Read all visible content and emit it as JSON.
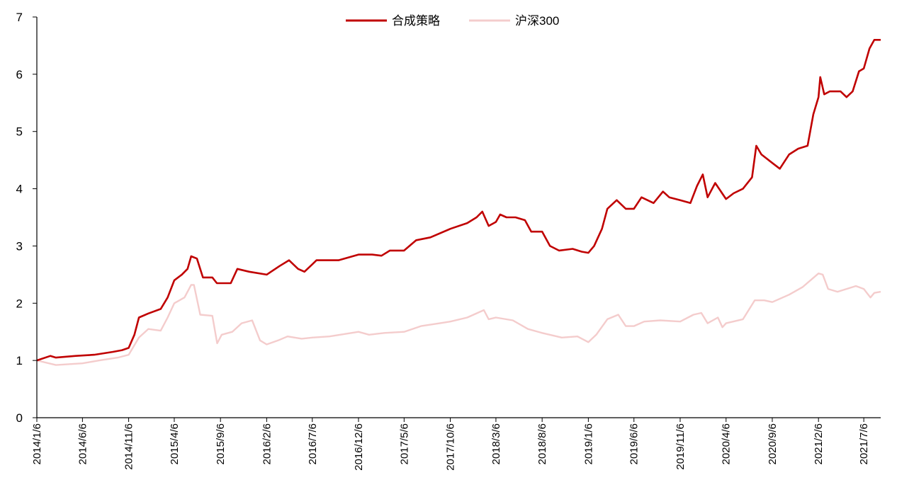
{
  "chart_data": {
    "type": "line",
    "title": "",
    "xlabel": "",
    "ylabel": "",
    "ylim": [
      0,
      7
    ],
    "yticks": [
      "0",
      "1",
      "2",
      "3",
      "4",
      "5",
      "6",
      "7"
    ],
    "xticks": [
      "2014/1/6",
      "2014/6/6",
      "2014/11/6",
      "2015/4/6",
      "2015/9/6",
      "2016/2/6",
      "2016/7/6",
      "2016/12/6",
      "2017/5/6",
      "2017/10/6",
      "2018/3/6",
      "2018/8/6",
      "2019/1/6",
      "2019/6/6",
      "2019/11/6",
      "2020/4/6",
      "2020/9/6",
      "2021/2/6",
      "2021/7/6"
    ],
    "x_range": [
      "2014/1/6",
      "2021/8/31"
    ],
    "grid": false,
    "legend_position": "top-center",
    "series": [
      {
        "name": "合成策略",
        "color": "#c00000",
        "points": [
          [
            "2014/1/6",
            1.0
          ],
          [
            "2014/2/20",
            1.08
          ],
          [
            "2014/3/10",
            1.05
          ],
          [
            "2014/5/15",
            1.08
          ],
          [
            "2014/7/15",
            1.1
          ],
          [
            "2014/9/15",
            1.15
          ],
          [
            "2014/10/15",
            1.18
          ],
          [
            "2014/11/6",
            1.22
          ],
          [
            "2014/11/25",
            1.45
          ],
          [
            "2014/12/10",
            1.75
          ],
          [
            "2015/1/10",
            1.82
          ],
          [
            "2015/2/20",
            1.9
          ],
          [
            "2015/3/15",
            2.1
          ],
          [
            "2015/4/6",
            2.4
          ],
          [
            "2015/5/1",
            2.5
          ],
          [
            "2015/5/20",
            2.6
          ],
          [
            "2015/6/1",
            2.82
          ],
          [
            "2015/6/20",
            2.78
          ],
          [
            "2015/7/10",
            2.45
          ],
          [
            "2015/8/10",
            2.45
          ],
          [
            "2015/8/25",
            2.35
          ],
          [
            "2015/10/10",
            2.35
          ],
          [
            "2015/11/1",
            2.6
          ],
          [
            "2015/12/10",
            2.55
          ],
          [
            "2016/2/6",
            2.5
          ],
          [
            "2016/3/20",
            2.65
          ],
          [
            "2016/4/20",
            2.75
          ],
          [
            "2016/5/20",
            2.6
          ],
          [
            "2016/6/10",
            2.55
          ],
          [
            "2016/7/6",
            2.68
          ],
          [
            "2016/7/20",
            2.75
          ],
          [
            "2016/10/1",
            2.75
          ],
          [
            "2016/12/6",
            2.85
          ],
          [
            "2017/1/20",
            2.85
          ],
          [
            "2017/2/20",
            2.83
          ],
          [
            "2017/3/20",
            2.92
          ],
          [
            "2017/5/6",
            2.92
          ],
          [
            "2017/6/15",
            3.1
          ],
          [
            "2017/8/1",
            3.15
          ],
          [
            "2017/10/6",
            3.3
          ],
          [
            "2017/12/1",
            3.4
          ],
          [
            "2018/1/1",
            3.5
          ],
          [
            "2018/1/20",
            3.6
          ],
          [
            "2018/2/10",
            3.35
          ],
          [
            "2018/3/6",
            3.42
          ],
          [
            "2018/3/20",
            3.55
          ],
          [
            "2018/4/10",
            3.5
          ],
          [
            "2018/5/10",
            3.5
          ],
          [
            "2018/6/10",
            3.45
          ],
          [
            "2018/7/1",
            3.25
          ],
          [
            "2018/8/6",
            3.25
          ],
          [
            "2018/9/1",
            3.0
          ],
          [
            "2018/10/1",
            2.92
          ],
          [
            "2018/11/15",
            2.95
          ],
          [
            "2018/12/15",
            2.9
          ],
          [
            "2019/1/6",
            2.88
          ],
          [
            "2019/1/25",
            3.0
          ],
          [
            "2019/2/20",
            3.3
          ],
          [
            "2019/3/10",
            3.65
          ],
          [
            "2019/4/10",
            3.8
          ],
          [
            "2019/5/10",
            3.65
          ],
          [
            "2019/6/6",
            3.65
          ],
          [
            "2019/7/1",
            3.85
          ],
          [
            "2019/8/10",
            3.75
          ],
          [
            "2019/9/10",
            3.95
          ],
          [
            "2019/10/1",
            3.85
          ],
          [
            "2019/11/6",
            3.8
          ],
          [
            "2019/12/10",
            3.75
          ],
          [
            "2020/1/1",
            4.05
          ],
          [
            "2020/1/20",
            4.25
          ],
          [
            "2020/2/5",
            3.85
          ],
          [
            "2020/3/1",
            4.1
          ],
          [
            "2020/4/6",
            3.82
          ],
          [
            "2020/5/1",
            3.92
          ],
          [
            "2020/6/1",
            4.0
          ],
          [
            "2020/7/1",
            4.2
          ],
          [
            "2020/7/15",
            4.75
          ],
          [
            "2020/8/1",
            4.6
          ],
          [
            "2020/9/6",
            4.45
          ],
          [
            "2020/10/1",
            4.35
          ],
          [
            "2020/11/1",
            4.6
          ],
          [
            "2020/12/1",
            4.7
          ],
          [
            "2021/1/1",
            4.75
          ],
          [
            "2021/1/20",
            5.3
          ],
          [
            "2021/2/6",
            5.6
          ],
          [
            "2021/2/12",
            5.95
          ],
          [
            "2021/2/25",
            5.65
          ],
          [
            "2021/3/15",
            5.7
          ],
          [
            "2021/4/20",
            5.7
          ],
          [
            "2021/5/10",
            5.6
          ],
          [
            "2021/5/30",
            5.7
          ],
          [
            "2021/6/20",
            6.05
          ],
          [
            "2021/7/6",
            6.1
          ],
          [
            "2021/7/25",
            6.45
          ],
          [
            "2021/8/10",
            6.6
          ],
          [
            "2021/8/31",
            6.6
          ]
        ]
      },
      {
        "name": "沪深300",
        "color": "#f4cccc",
        "points": [
          [
            "2014/1/6",
            1.0
          ],
          [
            "2014/3/10",
            0.92
          ],
          [
            "2014/6/6",
            0.95
          ],
          [
            "2014/8/1",
            1.0
          ],
          [
            "2014/10/1",
            1.05
          ],
          [
            "2014/11/6",
            1.1
          ],
          [
            "2014/12/10",
            1.4
          ],
          [
            "2015/1/10",
            1.55
          ],
          [
            "2015/2/20",
            1.52
          ],
          [
            "2015/3/15",
            1.75
          ],
          [
            "2015/4/6",
            2.0
          ],
          [
            "2015/5/10",
            2.1
          ],
          [
            "2015/6/1",
            2.32
          ],
          [
            "2015/6/10",
            2.32
          ],
          [
            "2015/7/1",
            1.8
          ],
          [
            "2015/8/10",
            1.78
          ],
          [
            "2015/8/26",
            1.3
          ],
          [
            "2015/9/10",
            1.45
          ],
          [
            "2015/10/15",
            1.5
          ],
          [
            "2015/11/15",
            1.65
          ],
          [
            "2015/12/20",
            1.7
          ],
          [
            "2016/1/15",
            1.35
          ],
          [
            "2016/2/6",
            1.28
          ],
          [
            "2016/3/15",
            1.35
          ],
          [
            "2016/4/15",
            1.42
          ],
          [
            "2016/6/1",
            1.38
          ],
          [
            "2016/7/6",
            1.4
          ],
          [
            "2016/9/1",
            1.42
          ],
          [
            "2016/12/6",
            1.5
          ],
          [
            "2017/1/10",
            1.45
          ],
          [
            "2017/3/1",
            1.48
          ],
          [
            "2017/5/6",
            1.5
          ],
          [
            "2017/7/1",
            1.6
          ],
          [
            "2017/9/1",
            1.65
          ],
          [
            "2017/10/6",
            1.68
          ],
          [
            "2017/12/1",
            1.75
          ],
          [
            "2018/1/25",
            1.88
          ],
          [
            "2018/2/10",
            1.72
          ],
          [
            "2018/3/6",
            1.75
          ],
          [
            "2018/5/1",
            1.7
          ],
          [
            "2018/6/20",
            1.55
          ],
          [
            "2018/8/6",
            1.48
          ],
          [
            "2018/10/10",
            1.4
          ],
          [
            "2018/12/1",
            1.42
          ],
          [
            "2019/1/6",
            1.32
          ],
          [
            "2019/2/1",
            1.45
          ],
          [
            "2019/3/10",
            1.72
          ],
          [
            "2019/4/15",
            1.8
          ],
          [
            "2019/5/10",
            1.6
          ],
          [
            "2019/6/6",
            1.6
          ],
          [
            "2019/7/10",
            1.68
          ],
          [
            "2019/9/1",
            1.7
          ],
          [
            "2019/11/6",
            1.68
          ],
          [
            "2019/12/20",
            1.8
          ],
          [
            "2020/1/15",
            1.83
          ],
          [
            "2020/2/5",
            1.65
          ],
          [
            "2020/3/10",
            1.75
          ],
          [
            "2020/3/25",
            1.58
          ],
          [
            "2020/4/6",
            1.65
          ],
          [
            "2020/6/1",
            1.72
          ],
          [
            "2020/7/10",
            2.05
          ],
          [
            "2020/8/10",
            2.05
          ],
          [
            "2020/9/6",
            2.02
          ],
          [
            "2020/11/1",
            2.15
          ],
          [
            "2020/12/15",
            2.28
          ],
          [
            "2021/1/15",
            2.42
          ],
          [
            "2021/2/6",
            2.52
          ],
          [
            "2021/2/20",
            2.5
          ],
          [
            "2021/3/10",
            2.25
          ],
          [
            "2021/4/10",
            2.2
          ],
          [
            "2021/5/10",
            2.25
          ],
          [
            "2021/6/10",
            2.3
          ],
          [
            "2021/7/6",
            2.25
          ],
          [
            "2021/7/28",
            2.1
          ],
          [
            "2021/8/10",
            2.18
          ],
          [
            "2021/8/31",
            2.2
          ]
        ]
      }
    ]
  }
}
